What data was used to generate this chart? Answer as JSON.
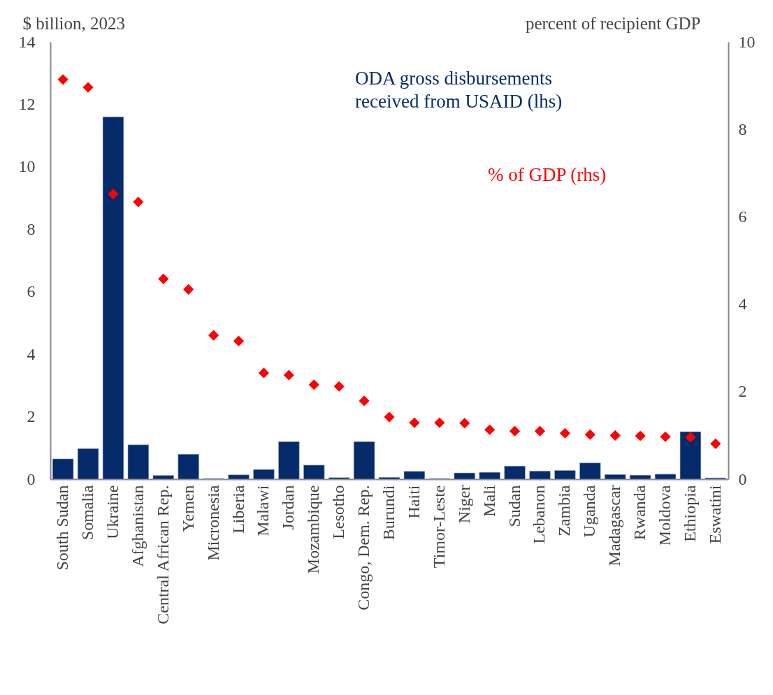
{
  "chart_data": {
    "type": "bar",
    "ylabel": "$ billion, 2023",
    "y2label": "percent of recipient GDP",
    "categories": [
      "South Sudan",
      "Somalia",
      "Ukraine",
      "Afghanistan",
      "Central African Rep.",
      "Yemen",
      "Micronesia",
      "Liberia",
      "Malawi",
      "Jordan",
      "Mozambique",
      "Lesotho",
      "Congo, Dem. Rep.",
      "Burundi",
      "Haiti",
      "Timor-Leste",
      "Niger",
      "Mali",
      "Sudan",
      "Lebanon",
      "Zambia",
      "Uganda",
      "Madagascar",
      "Rwanda",
      "Moldova",
      "Ethiopia",
      "Eswatini"
    ],
    "series": [
      {
        "name": "ODA gross disbursements received from USAID (lhs)",
        "color": "#062b6b",
        "values": [
          0.65,
          0.98,
          11.6,
          1.1,
          0.12,
          0.8,
          0.02,
          0.14,
          0.31,
          1.2,
          0.45,
          0.05,
          1.2,
          0.06,
          0.25,
          0.02,
          0.2,
          0.22,
          0.42,
          0.26,
          0.28,
          0.52,
          0.15,
          0.13,
          0.16,
          1.52,
          0.04
        ]
      },
      {
        "name": "% of GDP (rhs)",
        "type": "scatter",
        "axis": "y2",
        "marker": "diamond",
        "color": "#ff0000",
        "values": [
          9.14,
          8.96,
          6.52,
          6.34,
          4.58,
          4.34,
          3.29,
          3.16,
          2.43,
          2.38,
          2.16,
          2.12,
          1.79,
          1.42,
          1.29,
          1.29,
          1.28,
          1.13,
          1.1,
          1.1,
          1.05,
          1.02,
          1.0,
          0.99,
          0.97,
          0.96,
          0.81
        ]
      }
    ],
    "ylim": [
      0,
      14
    ],
    "yticks": [
      0,
      2,
      4,
      6,
      8,
      10,
      12,
      14
    ],
    "y2lim": [
      0,
      10
    ],
    "y2ticks": [
      0,
      2,
      4,
      6,
      8,
      10
    ]
  }
}
